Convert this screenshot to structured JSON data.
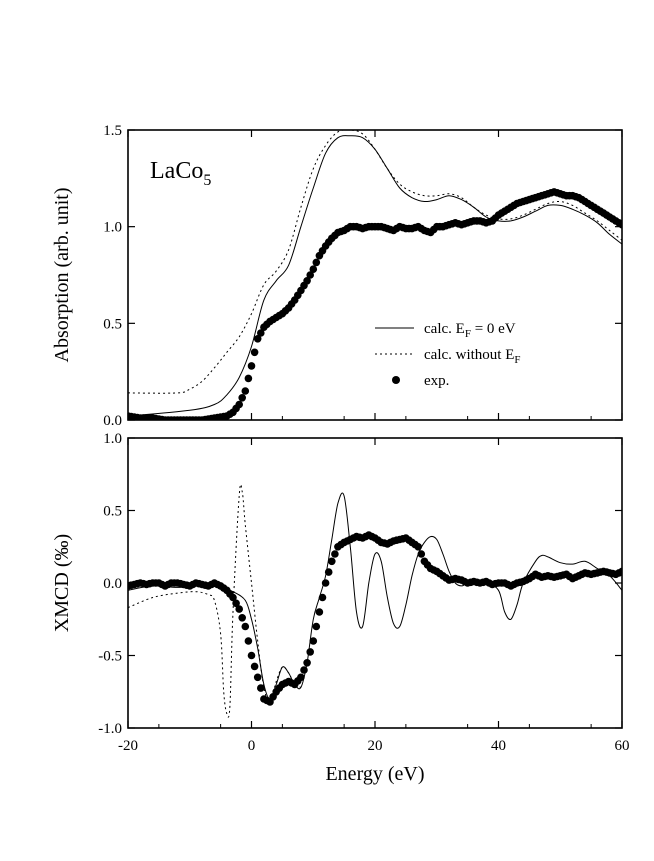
{
  "chart_data": [
    {
      "type": "line",
      "panel": "top",
      "ylabel": "Absorption (arb. unit)",
      "panel_label": "LaCo",
      "panel_label_sub": "5",
      "xlim": [
        -20,
        60
      ],
      "ylim": [
        0.0,
        1.5
      ],
      "yticks": [
        "0.0",
        "0.5",
        "1.0",
        "1.5"
      ],
      "legend_position": "center-right",
      "legend": [
        {
          "text": "calc. E",
          "sub": "F",
          "after": " = 0 eV",
          "style": "solid"
        },
        {
          "text": "calc. without E",
          "sub": "F",
          "after": "",
          "style": "dotted"
        },
        {
          "text": "exp.",
          "sub": "",
          "after": "",
          "style": "dots"
        }
      ],
      "series": [
        {
          "name": "calc. E_F = 0 eV",
          "style": "solid",
          "x": [
            -20,
            -10,
            -6,
            -4,
            -2,
            0,
            2,
            4,
            6,
            8,
            10,
            12,
            14,
            16,
            18,
            20,
            22,
            24,
            26,
            28,
            30,
            32,
            34,
            36,
            38,
            40,
            42,
            44,
            46,
            48,
            50,
            52,
            54,
            56,
            58,
            60
          ],
          "y": [
            0.02,
            0.05,
            0.08,
            0.13,
            0.22,
            0.38,
            0.62,
            0.72,
            0.8,
            1.0,
            1.2,
            1.38,
            1.46,
            1.47,
            1.46,
            1.4,
            1.3,
            1.2,
            1.15,
            1.13,
            1.14,
            1.16,
            1.14,
            1.1,
            1.05,
            1.03,
            1.03,
            1.05,
            1.08,
            1.11,
            1.11,
            1.09,
            1.06,
            1.02,
            0.96,
            0.91
          ]
        },
        {
          "name": "calc. without E_F",
          "style": "dotted",
          "x": [
            -20,
            -12,
            -10,
            -8,
            -6,
            -4,
            -2,
            0,
            2,
            4,
            6,
            8,
            10,
            12,
            14,
            16,
            18,
            20,
            22,
            24,
            26,
            28,
            30,
            32,
            34,
            36,
            38,
            40,
            42,
            44,
            46,
            48,
            50,
            52,
            54,
            56,
            58,
            60
          ],
          "y": [
            0.14,
            0.14,
            0.16,
            0.2,
            0.27,
            0.35,
            0.43,
            0.55,
            0.7,
            0.77,
            0.88,
            1.1,
            1.3,
            1.42,
            1.49,
            1.5,
            1.48,
            1.4,
            1.3,
            1.22,
            1.18,
            1.16,
            1.16,
            1.17,
            1.15,
            1.1,
            1.06,
            1.04,
            1.04,
            1.06,
            1.09,
            1.12,
            1.13,
            1.11,
            1.07,
            1.03,
            0.98,
            0.93
          ]
        },
        {
          "name": "exp.",
          "style": "dots",
          "x": [
            -20,
            -18,
            -16,
            -14,
            -12,
            -10,
            -8,
            -6,
            -4,
            -3,
            -2,
            -1,
            0,
            1,
            2,
            3,
            4,
            5,
            6,
            7,
            8,
            9,
            10,
            11,
            12,
            13,
            14,
            15,
            16,
            17,
            18,
            19,
            20,
            21,
            22,
            23,
            24,
            25,
            26,
            27,
            28,
            29,
            30,
            31,
            32,
            33,
            34,
            35,
            36,
            37,
            38,
            39,
            40,
            41,
            42,
            43,
            44,
            45,
            46,
            47,
            48,
            49,
            50,
            51,
            52,
            53,
            54,
            55,
            56,
            57,
            58,
            59,
            60
          ],
          "y": [
            0.02,
            0.01,
            0.01,
            0.0,
            0.0,
            0.0,
            0.0,
            0.01,
            0.02,
            0.04,
            0.08,
            0.15,
            0.28,
            0.42,
            0.48,
            0.51,
            0.53,
            0.55,
            0.58,
            0.62,
            0.67,
            0.72,
            0.78,
            0.85,
            0.9,
            0.94,
            0.97,
            0.98,
            1.0,
            1.0,
            0.99,
            1.0,
            1.0,
            1.0,
            0.99,
            0.98,
            1.0,
            0.99,
            0.99,
            1.0,
            0.98,
            0.97,
            1.0,
            1.0,
            1.01,
            1.02,
            1.01,
            1.02,
            1.03,
            1.03,
            1.02,
            1.03,
            1.06,
            1.08,
            1.1,
            1.12,
            1.13,
            1.14,
            1.15,
            1.16,
            1.17,
            1.18,
            1.17,
            1.16,
            1.16,
            1.15,
            1.13,
            1.11,
            1.09,
            1.07,
            1.05,
            1.03,
            1.01
          ]
        }
      ]
    },
    {
      "type": "line",
      "panel": "bottom",
      "xlabel": "Energy (eV)",
      "ylabel": "XMCD (‰)",
      "xlim": [
        -20,
        60
      ],
      "ylim": [
        -1.0,
        1.0
      ],
      "xticks": [
        "-20",
        "0",
        "20",
        "40",
        "60"
      ],
      "yticks": [
        "-1.0",
        "-0.5",
        "0.0",
        "0.5",
        "1.0"
      ],
      "series": [
        {
          "name": "calc. E_F = 0 eV",
          "style": "solid",
          "x": [
            -20,
            -16,
            -12,
            -8,
            -5,
            -3,
            -1,
            0,
            1,
            2,
            3,
            4,
            5,
            6,
            7,
            8,
            9,
            10,
            11,
            12,
            13,
            14,
            15,
            16,
            17,
            18,
            19,
            20,
            21,
            22,
            23,
            24,
            25,
            26,
            27,
            28,
            29,
            30,
            31,
            32,
            33,
            34,
            35,
            36,
            38,
            40,
            41,
            42,
            43,
            44,
            46,
            47,
            48,
            50,
            52,
            54,
            56,
            58,
            60
          ],
          "y": [
            -0.05,
            -0.02,
            -0.03,
            -0.02,
            -0.03,
            -0.06,
            -0.12,
            -0.25,
            -0.45,
            -0.7,
            -0.8,
            -0.7,
            -0.58,
            -0.62,
            -0.7,
            -0.72,
            -0.55,
            -0.25,
            -0.1,
            0.05,
            0.3,
            0.55,
            0.6,
            0.25,
            -0.2,
            -0.3,
            0.0,
            0.2,
            0.15,
            -0.1,
            -0.28,
            -0.3,
            -0.15,
            0.05,
            0.2,
            0.28,
            0.32,
            0.3,
            0.2,
            0.08,
            0.0,
            -0.02,
            0.0,
            0.0,
            0.0,
            -0.05,
            -0.2,
            -0.25,
            -0.15,
            0.0,
            0.15,
            0.19,
            0.18,
            0.14,
            0.13,
            0.15,
            0.1,
            0.05,
            -0.05
          ]
        },
        {
          "name": "calc. without E_F",
          "style": "dotted",
          "x": [
            -20,
            -16,
            -12,
            -9,
            -7,
            -6,
            -5,
            -4.5,
            -4,
            -3.5,
            -3,
            -2,
            -1.5,
            -1,
            0,
            1,
            2,
            3,
            4,
            5,
            6,
            7,
            8
          ],
          "y": [
            -0.17,
            -0.1,
            -0.07,
            -0.06,
            -0.08,
            -0.12,
            -0.35,
            -0.75,
            -0.9,
            -0.85,
            -0.2,
            0.6,
            0.63,
            0.4,
            0.0,
            -0.4,
            -0.72,
            -0.82,
            -0.68,
            -0.58,
            -0.62,
            -0.7,
            -0.72
          ]
        },
        {
          "name": "exp.",
          "style": "dots",
          "x": [
            -20,
            -19,
            -18,
            -17,
            -16,
            -15,
            -14,
            -13,
            -12,
            -11,
            -10,
            -9,
            -8,
            -7,
            -6,
            -5,
            -4,
            -3,
            -2,
            -1,
            0,
            1,
            2,
            3,
            4,
            5,
            6,
            7,
            8,
            9,
            10,
            11,
            12,
            13,
            14,
            15,
            16,
            17,
            18,
            19,
            20,
            21,
            22,
            23,
            24,
            25,
            26,
            27,
            28,
            29,
            30,
            31,
            32,
            33,
            34,
            35,
            36,
            37,
            38,
            39,
            40,
            41,
            42,
            43,
            44,
            45,
            46,
            47,
            48,
            49,
            50,
            51,
            52,
            53,
            54,
            55,
            56,
            57,
            58,
            59,
            60
          ],
          "y": [
            -0.02,
            -0.01,
            0.0,
            -0.01,
            0.0,
            0.0,
            -0.02,
            0.0,
            0.0,
            -0.01,
            -0.02,
            0.0,
            -0.01,
            -0.02,
            0.0,
            -0.02,
            -0.05,
            -0.1,
            -0.18,
            -0.3,
            -0.5,
            -0.65,
            -0.8,
            -0.82,
            -0.75,
            -0.7,
            -0.68,
            -0.7,
            -0.65,
            -0.55,
            -0.4,
            -0.2,
            0.0,
            0.15,
            0.25,
            0.28,
            0.3,
            0.32,
            0.31,
            0.33,
            0.31,
            0.28,
            0.27,
            0.29,
            0.3,
            0.31,
            0.28,
            0.25,
            0.15,
            0.1,
            0.08,
            0.05,
            0.02,
            0.03,
            0.02,
            0.0,
            0.01,
            0.0,
            0.01,
            -0.01,
            0.0,
            0.0,
            -0.02,
            0.0,
            0.01,
            0.03,
            0.06,
            0.04,
            0.05,
            0.04,
            0.05,
            0.06,
            0.03,
            0.05,
            0.07,
            0.06,
            0.07,
            0.08,
            0.07,
            0.06,
            0.08
          ]
        }
      ]
    }
  ]
}
